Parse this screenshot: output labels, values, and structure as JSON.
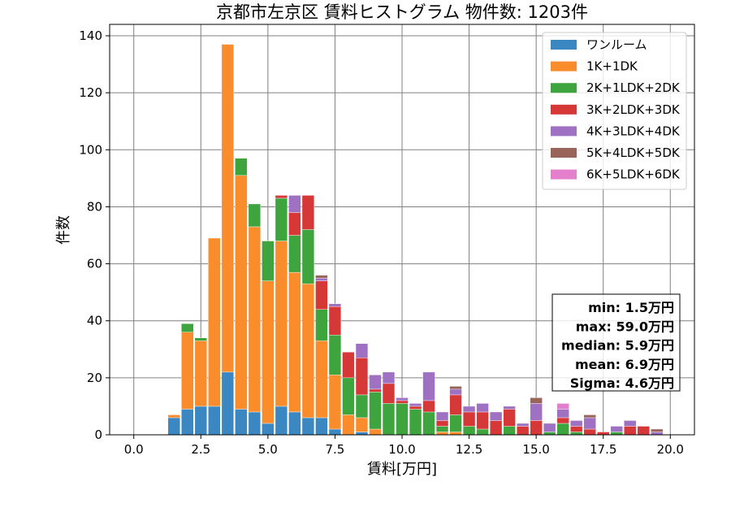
{
  "chart_data": {
    "type": "bar",
    "title": "京都市左京区 賃料ヒストグラム  物件数: 1203件",
    "xlabel": "賃料[万円]",
    "ylabel": "件数",
    "xlim": [
      -0.9,
      20.9
    ],
    "ylim": [
      0,
      144
    ],
    "x_ticks": [
      0,
      2.5,
      5,
      7.5,
      10,
      12.5,
      15,
      17.5,
      20
    ],
    "x_tick_labels": [
      "0.0",
      "2.5",
      "5.0",
      "7.5",
      "10.0",
      "12.5",
      "15.0",
      "17.5",
      "20.0"
    ],
    "y_ticks": [
      0,
      20,
      40,
      60,
      80,
      100,
      120,
      140
    ],
    "y_tick_labels": [
      "0",
      "20",
      "40",
      "60",
      "80",
      "100",
      "120",
      "140"
    ],
    "stacked": true,
    "grid": true,
    "legend_position": "top-right",
    "bin_width": 0.5,
    "bin_centers": [
      1.5,
      2.0,
      2.5,
      3.0,
      3.5,
      4.0,
      4.5,
      5.0,
      5.5,
      6.0,
      6.5,
      7.0,
      7.5,
      8.0,
      8.5,
      9.0,
      9.5,
      10.0,
      10.5,
      11.0,
      11.5,
      12.0,
      12.5,
      13.0,
      13.5,
      14.0,
      14.5,
      15.0,
      15.5,
      16.0,
      16.5,
      17.0,
      17.5,
      18.0,
      18.5,
      19.0,
      19.5
    ],
    "series": [
      {
        "name": "ワンルーム",
        "color": "#3a87c1",
        "values": [
          6,
          9,
          10,
          10,
          22,
          9,
          8,
          4,
          10,
          8,
          6,
          6,
          2,
          0,
          1,
          0,
          0,
          0,
          0,
          0,
          0,
          0,
          0,
          0,
          0,
          0,
          0,
          0,
          0,
          0,
          0,
          0,
          0,
          0,
          0,
          0,
          0
        ]
      },
      {
        "name": "1K+1DK",
        "color": "#fb8c2c",
        "values": [
          1,
          27,
          23,
          59,
          115,
          82,
          65,
          50,
          58,
          49,
          47,
          27,
          19,
          7,
          5,
          2,
          0,
          0,
          0,
          0,
          1,
          1,
          0,
          0,
          0,
          0,
          0,
          0,
          0,
          0,
          0,
          0,
          0,
          0,
          0,
          0,
          0
        ]
      },
      {
        "name": "2K+1LDK+2DK",
        "color": "#3ea43e",
        "values": [
          0,
          3,
          1,
          0,
          0,
          6,
          8,
          14,
          15,
          13,
          19,
          11,
          14,
          13,
          8,
          13,
          11,
          11,
          9,
          8,
          2,
          6,
          3,
          2,
          0,
          3,
          0,
          0,
          1,
          4,
          1,
          0,
          0,
          1,
          0,
          0,
          0
        ]
      },
      {
        "name": "3K+2LDK+3DK",
        "color": "#d63838",
        "values": [
          0,
          0,
          0,
          0,
          0,
          0,
          0,
          0,
          1,
          8,
          12,
          10,
          10,
          9,
          13,
          1,
          7,
          1,
          1,
          4,
          2,
          7,
          5,
          6,
          5,
          6,
          3,
          5,
          0,
          2,
          2,
          2,
          1,
          0,
          3,
          3,
          0
        ]
      },
      {
        "name": "4K+3LDK+4DK",
        "color": "#9e71c3",
        "values": [
          0,
          0,
          0,
          0,
          0,
          0,
          0,
          0,
          0,
          6,
          0,
          1,
          1,
          0,
          5,
          5,
          4,
          1,
          1,
          10,
          3,
          2,
          2,
          3,
          3,
          1,
          1,
          6,
          3,
          3,
          2,
          4,
          0,
          2,
          2,
          0,
          1
        ]
      },
      {
        "name": "5K+4LDK+5DK",
        "color": "#996459",
        "values": [
          0,
          0,
          0,
          0,
          0,
          0,
          0,
          0,
          0,
          0,
          0,
          1,
          0,
          0,
          0,
          0,
          0,
          0,
          0,
          0,
          0,
          1,
          0,
          0,
          0,
          0,
          0,
          2,
          0,
          0,
          0,
          1,
          0,
          0,
          0,
          0,
          1
        ]
      },
      {
        "name": "6K+5LDK+6DK",
        "color": "#e37fcc",
        "values": [
          0,
          0,
          0,
          0,
          0,
          0,
          0,
          0,
          0,
          0,
          0,
          0,
          0,
          0,
          0,
          0,
          0,
          0,
          0,
          0,
          0,
          0,
          0,
          0,
          0,
          0,
          0,
          0,
          0,
          2,
          0,
          0,
          0,
          0,
          0,
          0,
          0
        ]
      }
    ],
    "stats": [
      "min: 1.5万円",
      "max: 59.0万円",
      "median: 5.9万円",
      "mean: 6.9万円",
      "Sigma: 4.6万円"
    ]
  }
}
